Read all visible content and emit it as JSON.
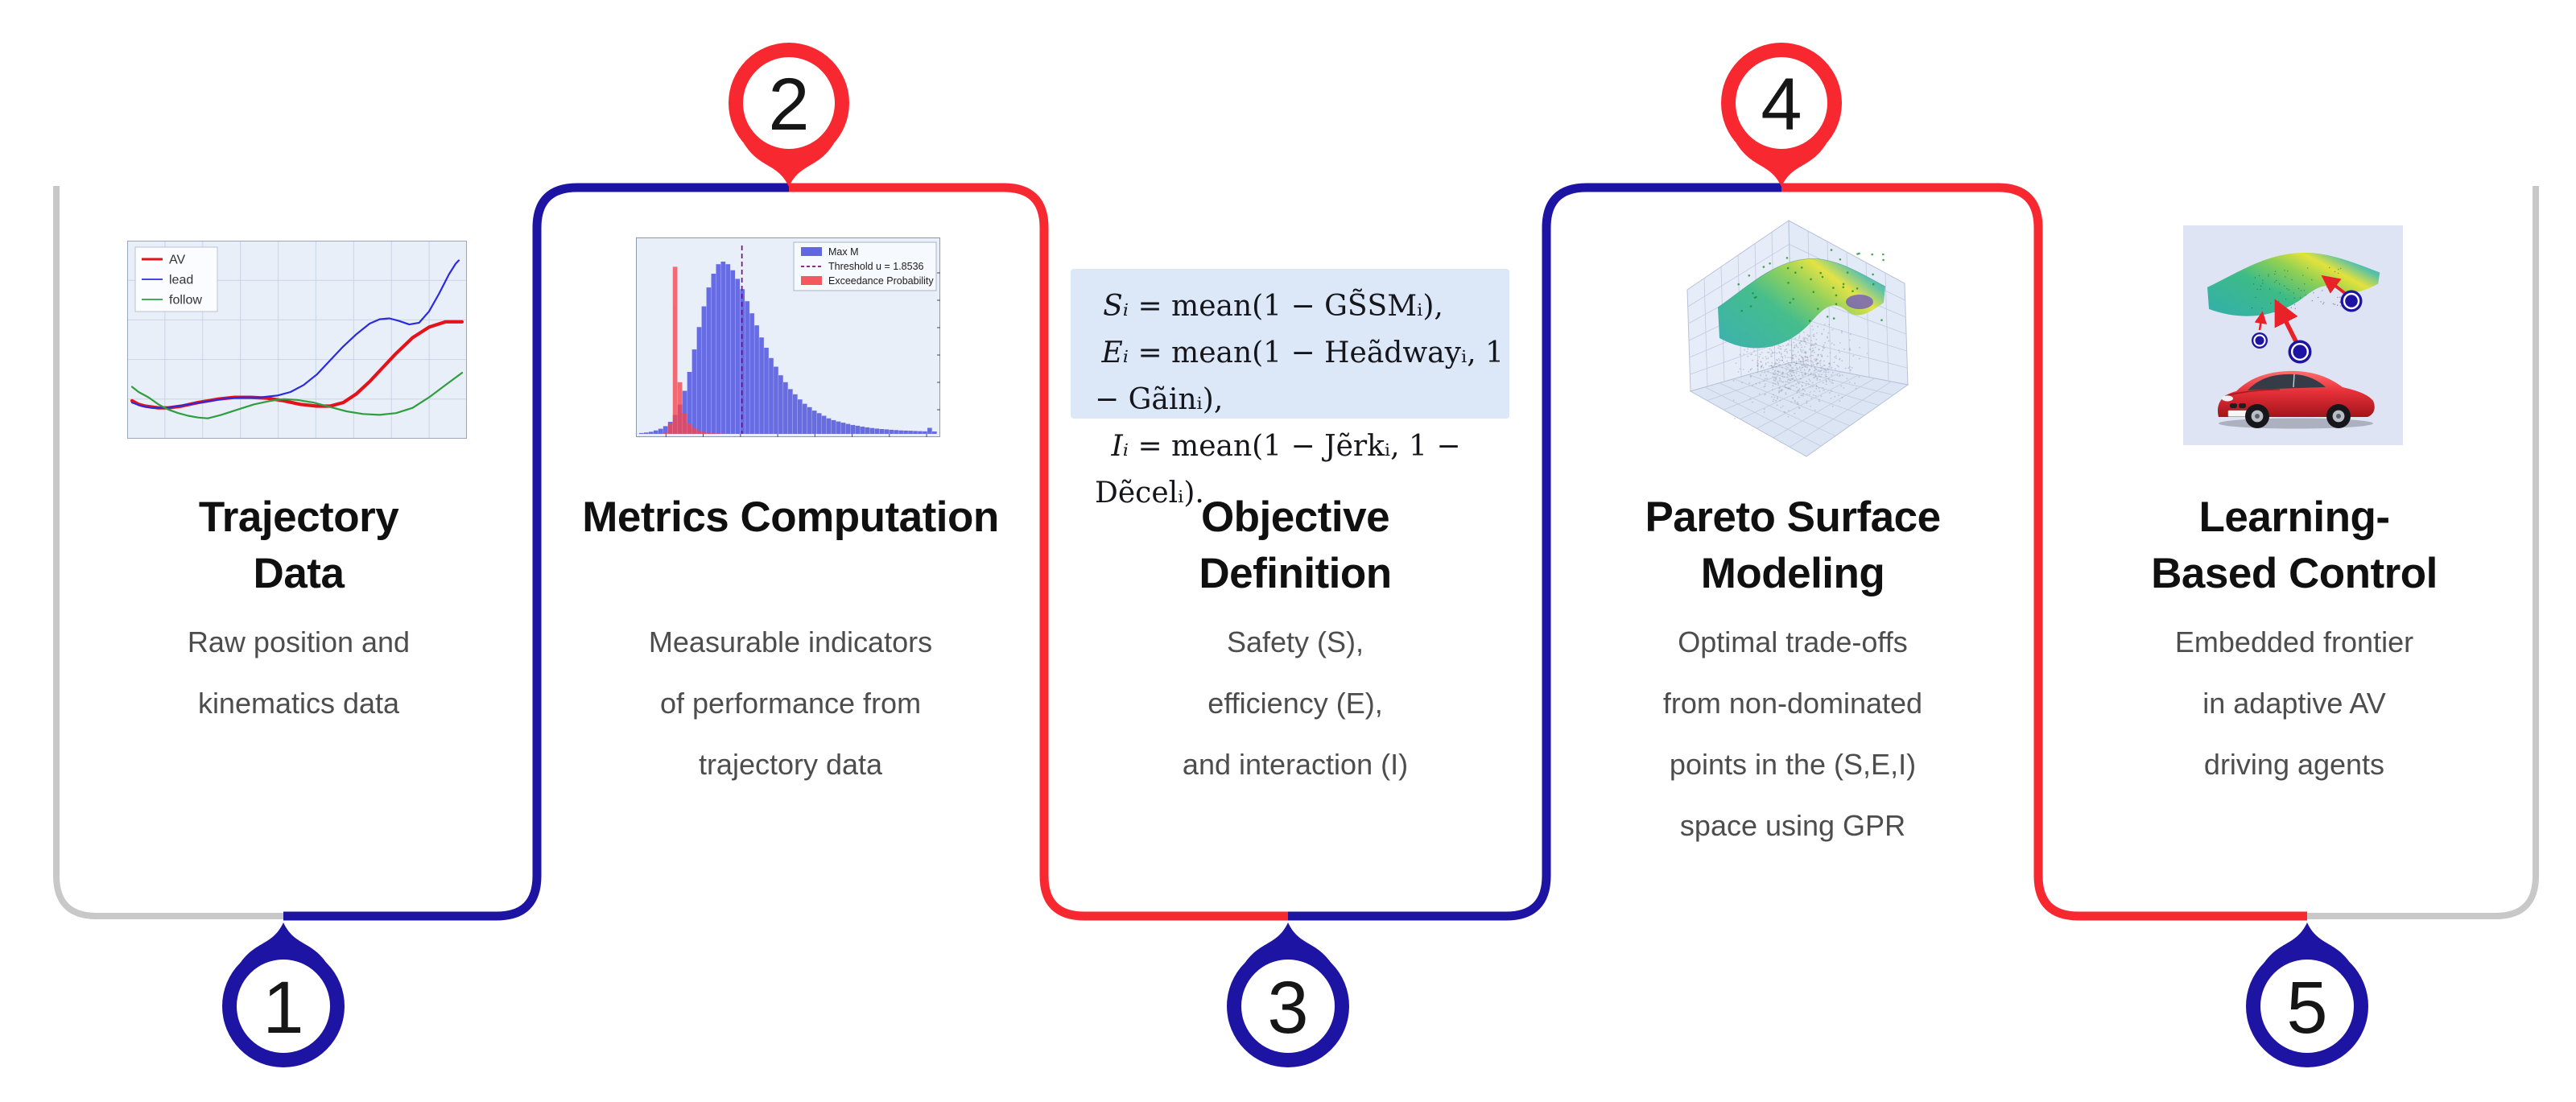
{
  "diagram_title": "AV trajectory evaluation pipeline",
  "colors": {
    "navy": "#1e14a3",
    "red": "#f82830",
    "gray": "#c8c8c8",
    "title_text": "#101010",
    "desc_text": "#4d4d4d",
    "equation_bg": "#dce8f8",
    "chart_bg": "#e9eff9",
    "hist_blue": "#5156de",
    "hist_red": "#f4464e",
    "threshold_purple": "#7c0d7c",
    "surface_teal": "#35b1a5",
    "surface_yellow": "#e3e23c"
  },
  "steps": [
    {
      "number": "1",
      "pin": "bottom",
      "pin_color": "navy",
      "title_lines": [
        "Trajectory",
        "Data"
      ],
      "desc_lines": [
        "Raw position and",
        "kinematics data"
      ]
    },
    {
      "number": "2",
      "pin": "top",
      "pin_color": "red",
      "title_lines": [
        "Metrics Computation"
      ],
      "desc_lines": [
        "Measurable indicators",
        "of performance from",
        "trajectory data"
      ]
    },
    {
      "number": "3",
      "pin": "bottom",
      "pin_color": "navy",
      "title_lines": [
        "Objective",
        "Definition"
      ],
      "desc_lines": [
        "Safety (S),",
        "efficiency (E),",
        "and interaction (I)"
      ]
    },
    {
      "number": "4",
      "pin": "top",
      "pin_color": "red",
      "title_lines": [
        "Pareto Surface",
        "Modeling"
      ],
      "desc_lines": [
        "Optimal trade-offs",
        "from non-dominated",
        "points in the (S,E,I)",
        "space using GPR"
      ]
    },
    {
      "number": "5",
      "pin": "bottom",
      "pin_color": "navy",
      "title_lines": [
        "Learning-",
        "Based Control"
      ],
      "desc_lines": [
        "Embedded frontier",
        "in adaptive AV",
        "driving agents"
      ]
    }
  ],
  "equations": {
    "lines": [
      {
        "lhs": "Sᵢ",
        "rhs": " = mean(1 − GS̃SMᵢ),"
      },
      {
        "lhs": "Eᵢ",
        "rhs": " = mean(1 − Heãdwayᵢ, 1 − Gãinᵢ),"
      },
      {
        "lhs": "Iᵢ",
        "rhs": " = mean(1 − Jẽrkᵢ, 1 − Dẽcelᵢ)."
      }
    ]
  },
  "chart_data": [
    {
      "type": "line",
      "title": "",
      "xlabel": "",
      "ylabel": "",
      "grid": true,
      "grid_cols": 9,
      "grid_rows": 5,
      "legend_position": "top-left",
      "series": [
        {
          "name": "AV",
          "color": "#e3131b",
          "width": 4.2,
          "points": [
            [
              0,
              0.17
            ],
            [
              0.02,
              0.15
            ],
            [
              0.04,
              0.14
            ],
            [
              0.08,
              0.13
            ],
            [
              0.11,
              0.13
            ],
            [
              0.15,
              0.14
            ],
            [
              0.2,
              0.16
            ],
            [
              0.26,
              0.18
            ],
            [
              0.31,
              0.19
            ],
            [
              0.36,
              0.19
            ],
            [
              0.41,
              0.185
            ],
            [
              0.46,
              0.17
            ],
            [
              0.51,
              0.15
            ],
            [
              0.56,
              0.14
            ],
            [
              0.6,
              0.14
            ],
            [
              0.64,
              0.16
            ],
            [
              0.68,
              0.21
            ],
            [
              0.72,
              0.28
            ],
            [
              0.76,
              0.36
            ],
            [
              0.8,
              0.44
            ],
            [
              0.85,
              0.53
            ],
            [
              0.9,
              0.59
            ],
            [
              0.95,
              0.62
            ],
            [
              1,
              0.62
            ]
          ]
        },
        {
          "name": "lead",
          "color": "#2b2bde",
          "width": 2.2,
          "points": [
            [
              0,
              0.16
            ],
            [
              0.03,
              0.14
            ],
            [
              0.06,
              0.13
            ],
            [
              0.1,
              0.13
            ],
            [
              0.14,
              0.14
            ],
            [
              0.19,
              0.155
            ],
            [
              0.24,
              0.17
            ],
            [
              0.29,
              0.185
            ],
            [
              0.34,
              0.19
            ],
            [
              0.39,
              0.19
            ],
            [
              0.44,
              0.2
            ],
            [
              0.48,
              0.22
            ],
            [
              0.52,
              0.26
            ],
            [
              0.56,
              0.32
            ],
            [
              0.6,
              0.4
            ],
            [
              0.64,
              0.48
            ],
            [
              0.68,
              0.55
            ],
            [
              0.72,
              0.61
            ],
            [
              0.75,
              0.635
            ],
            [
              0.78,
              0.64
            ],
            [
              0.81,
              0.625
            ],
            [
              0.84,
              0.605
            ],
            [
              0.87,
              0.615
            ],
            [
              0.9,
              0.68
            ],
            [
              0.93,
              0.78
            ],
            [
              0.96,
              0.89
            ],
            [
              0.98,
              0.95
            ],
            [
              0.99,
              0.97
            ]
          ]
        },
        {
          "name": "follow",
          "color": "#2e9e3e",
          "width": 2.2,
          "points": [
            [
              0,
              0.25
            ],
            [
              0.02,
              0.22
            ],
            [
              0.05,
              0.19
            ],
            [
              0.08,
              0.15
            ],
            [
              0.11,
              0.12
            ],
            [
              0.14,
              0.1
            ],
            [
              0.17,
              0.085
            ],
            [
              0.2,
              0.075
            ],
            [
              0.23,
              0.07
            ],
            [
              0.27,
              0.09
            ],
            [
              0.32,
              0.12
            ],
            [
              0.37,
              0.15
            ],
            [
              0.42,
              0.17
            ],
            [
              0.46,
              0.18
            ],
            [
              0.5,
              0.175
            ],
            [
              0.55,
              0.16
            ],
            [
              0.6,
              0.135
            ],
            [
              0.65,
              0.11
            ],
            [
              0.7,
              0.095
            ],
            [
              0.75,
              0.09
            ],
            [
              0.8,
              0.1
            ],
            [
              0.85,
              0.13
            ],
            [
              0.9,
              0.19
            ],
            [
              0.95,
              0.26
            ],
            [
              1,
              0.33
            ]
          ]
        }
      ]
    },
    {
      "type": "histogram",
      "title": "",
      "legend": [
        "Max M",
        "Threshold u = 1.8536",
        "Exceedance Probability"
      ],
      "threshold_fraction": 0.345,
      "blue_bins": [
        0.005,
        0.008,
        0.012,
        0.02,
        0.03,
        0.045,
        0.07,
        0.11,
        0.17,
        0.25,
        0.36,
        0.49,
        0.62,
        0.74,
        0.85,
        0.93,
        0.985,
        1,
        0.985,
        0.95,
        0.9,
        0.84,
        0.77,
        0.7,
        0.63,
        0.56,
        0.5,
        0.44,
        0.39,
        0.34,
        0.3,
        0.26,
        0.23,
        0.2,
        0.175,
        0.155,
        0.135,
        0.12,
        0.105,
        0.09,
        0.08,
        0.072,
        0.065,
        0.058,
        0.052,
        0.047,
        0.042,
        0.038,
        0.034,
        0.031,
        0.028,
        0.026,
        0.024,
        0.022,
        0.02,
        0.019,
        0.018,
        0.017,
        0.016,
        0.015,
        0.035,
        0.014
      ],
      "red_bins": [
        0,
        0,
        0,
        0,
        0,
        0.01,
        0.06,
        0.97,
        0.3,
        0.12,
        0.06,
        0.035,
        0.02,
        0.012,
        0.008,
        0.005,
        0.003,
        0.002,
        0.001,
        0,
        0,
        0,
        0,
        0,
        0,
        0,
        0,
        0,
        0,
        0,
        0,
        0,
        0,
        0,
        0,
        0,
        0,
        0,
        0,
        0,
        0,
        0,
        0,
        0,
        0,
        0,
        0,
        0,
        0,
        0,
        0,
        0,
        0,
        0,
        0,
        0,
        0,
        0,
        0,
        0,
        0,
        0
      ]
    },
    {
      "type": "surface3d",
      "description": "GPR Pareto surface (viridis) fitted above a cloud of sample points in (S,E,I) space"
    }
  ]
}
